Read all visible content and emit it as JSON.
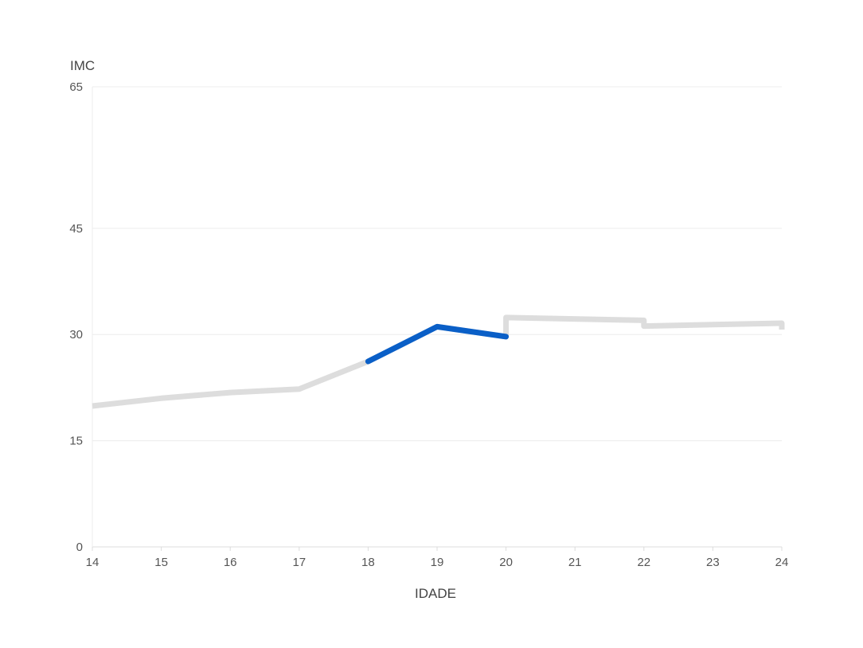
{
  "chart_data": {
    "type": "line",
    "xlabel": "IDADE",
    "ylabel": "IMC",
    "xlim": [
      14,
      24
    ],
    "ylim": [
      0,
      65
    ],
    "x_ticks": [
      14,
      15,
      16,
      17,
      18,
      19,
      20,
      21,
      22,
      23,
      24
    ],
    "y_ticks": [
      0,
      15,
      30,
      45,
      65
    ],
    "grid": true,
    "series": [
      {
        "color": "#dddddd",
        "points": [
          [
            14,
            19.9
          ],
          [
            15,
            21.0
          ],
          [
            16,
            21.8
          ],
          [
            17,
            22.3
          ],
          [
            18,
            26.2
          ],
          [
            19,
            31.1
          ],
          [
            20,
            29.7
          ],
          [
            20,
            32.4
          ],
          [
            22,
            32.0
          ],
          [
            22,
            31.2
          ],
          [
            24,
            31.6
          ],
          [
            24,
            30.7
          ]
        ]
      },
      {
        "color": "#0a5fc7",
        "points": [
          [
            18,
            26.2
          ],
          [
            19,
            31.1
          ],
          [
            20,
            29.7
          ]
        ]
      }
    ]
  }
}
